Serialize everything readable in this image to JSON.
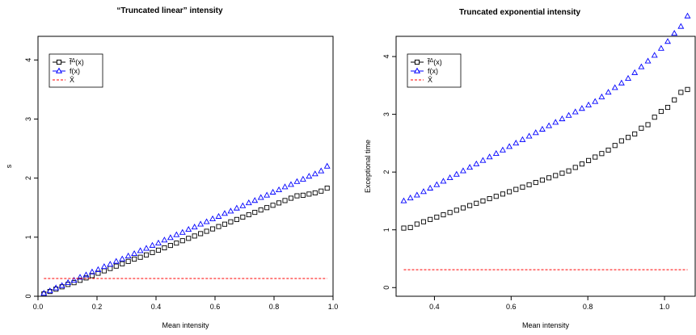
{
  "chart_data": [
    {
      "type": "scatter",
      "title": "“Truncated linear” intensity",
      "xlabel": "Mean intensity",
      "ylabel": "s",
      "xlim": [
        0.0,
        1.0
      ],
      "ylim": [
        0,
        4.4
      ],
      "xticks": [
        "0.0",
        "0.2",
        "0.4",
        "0.6",
        "0.8",
        "1.0"
      ],
      "yticks": [
        "0",
        "1",
        "2",
        "3",
        "4"
      ],
      "legend_position": "top-left",
      "series": [
        {
          "name": "f̃^Δ(x)",
          "label_main": "f̃",
          "label_sup": "Δ",
          "label_tail": "(x)",
          "marker": "square",
          "style": "points",
          "color": "#000000",
          "x_start": 0.02,
          "x_end": 0.98,
          "n": 48,
          "values": [
            0.04,
            0.08,
            0.12,
            0.16,
            0.2,
            0.23,
            0.27,
            0.31,
            0.35,
            0.39,
            0.43,
            0.47,
            0.51,
            0.55,
            0.59,
            0.63,
            0.66,
            0.7,
            0.74,
            0.78,
            0.82,
            0.86,
            0.9,
            0.94,
            0.98,
            1.02,
            1.06,
            1.1,
            1.14,
            1.18,
            1.22,
            1.26,
            1.3,
            1.34,
            1.38,
            1.42,
            1.46,
            1.5,
            1.54,
            1.58,
            1.62,
            1.66,
            1.7,
            1.71,
            1.73,
            1.75,
            1.78,
            1.83
          ]
        },
        {
          "name": "f(x)",
          "label_main": "f",
          "label_sup": "",
          "label_tail": "(x)",
          "marker": "triangle",
          "style": "points",
          "color": "#0000ff",
          "x_start": 0.02,
          "x_end": 0.98,
          "n": 48,
          "values": [
            0.05,
            0.09,
            0.14,
            0.18,
            0.23,
            0.27,
            0.32,
            0.36,
            0.41,
            0.45,
            0.5,
            0.54,
            0.59,
            0.63,
            0.68,
            0.72,
            0.77,
            0.81,
            0.86,
            0.9,
            0.95,
            0.99,
            1.04,
            1.08,
            1.13,
            1.17,
            1.22,
            1.26,
            1.31,
            1.35,
            1.4,
            1.44,
            1.49,
            1.53,
            1.58,
            1.62,
            1.67,
            1.71,
            1.76,
            1.8,
            1.85,
            1.89,
            1.94,
            1.98,
            2.03,
            2.07,
            2.12,
            2.2
          ]
        },
        {
          "name": "X̄",
          "label_main": "X̄",
          "label_sup": "",
          "label_tail": "",
          "marker": "dash",
          "style": "dashed-line",
          "color": "#ff0000",
          "x": [
            0.02,
            0.98
          ],
          "values": [
            0.3,
            0.3
          ]
        }
      ]
    },
    {
      "type": "scatter",
      "title": "Truncated exponential intensity",
      "xlabel": "Mean intensity",
      "ylabel": "Exceptional time",
      "xlim": [
        0.3,
        1.08
      ],
      "ylim": [
        -0.15,
        4.35
      ],
      "xticks": [
        "0.4",
        "0.6",
        "0.8",
        "1.0"
      ],
      "yticks": [
        "0",
        "1",
        "2",
        "3",
        "4"
      ],
      "legend_position": "top-left",
      "series": [
        {
          "name": "f̃^Δ(x)",
          "label_main": "f̃",
          "label_sup": "Δ",
          "label_tail": "(x)",
          "marker": "square",
          "style": "points",
          "color": "#000000",
          "x_start": 0.32,
          "x_end": 1.06,
          "n": 44,
          "values": [
            1.03,
            1.04,
            1.1,
            1.14,
            1.18,
            1.22,
            1.26,
            1.3,
            1.34,
            1.38,
            1.42,
            1.46,
            1.5,
            1.54,
            1.58,
            1.62,
            1.66,
            1.7,
            1.74,
            1.78,
            1.82,
            1.86,
            1.9,
            1.94,
            1.98,
            2.02,
            2.08,
            2.14,
            2.2,
            2.26,
            2.32,
            2.38,
            2.46,
            2.54,
            2.6,
            2.66,
            2.76,
            2.82,
            2.95,
            3.05,
            3.12,
            3.25,
            3.38,
            3.43
          ]
        },
        {
          "name": "f(x)",
          "label_main": "f",
          "label_sup": "",
          "label_tail": "(x)",
          "marker": "triangle",
          "style": "points",
          "color": "#0000ff",
          "x_start": 0.32,
          "x_end": 1.06,
          "n": 44,
          "values": [
            1.5,
            1.55,
            1.6,
            1.66,
            1.72,
            1.78,
            1.84,
            1.9,
            1.96,
            2.02,
            2.08,
            2.14,
            2.2,
            2.26,
            2.32,
            2.38,
            2.44,
            2.5,
            2.56,
            2.62,
            2.68,
            2.74,
            2.8,
            2.86,
            2.92,
            2.98,
            3.04,
            3.1,
            3.16,
            3.22,
            3.3,
            3.38,
            3.46,
            3.54,
            3.62,
            3.72,
            3.82,
            3.92,
            4.02,
            4.14,
            4.26,
            4.4,
            4.52,
            4.7
          ]
        },
        {
          "name": "X̄",
          "label_main": "X̄",
          "label_sup": "",
          "label_tail": "",
          "marker": "dash",
          "style": "dashed-line",
          "color": "#ff0000",
          "x": [
            0.32,
            1.06
          ],
          "values": [
            0.31,
            0.31
          ]
        }
      ]
    }
  ]
}
